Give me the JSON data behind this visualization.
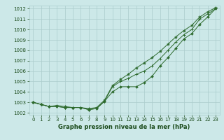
{
  "x": [
    0,
    1,
    2,
    3,
    4,
    5,
    6,
    7,
    8,
    9,
    10,
    11,
    12,
    13,
    14,
    15,
    16,
    17,
    18,
    19,
    20,
    21,
    22,
    23
  ],
  "line1": [
    1003.0,
    1002.8,
    1002.6,
    1002.6,
    1002.5,
    1002.5,
    1002.5,
    1002.3,
    1002.4,
    1003.1,
    1004.0,
    1004.5,
    1004.5,
    1004.5,
    1004.9,
    1005.5,
    1006.5,
    1007.3,
    1008.2,
    1009.1,
    1009.6,
    1010.5,
    1011.2,
    1012.0
  ],
  "line2": [
    1003.0,
    1002.8,
    1002.6,
    1002.6,
    1002.5,
    1002.5,
    1002.5,
    1002.3,
    1002.4,
    1003.1,
    1004.5,
    1005.0,
    1005.3,
    1005.7,
    1006.0,
    1006.5,
    1007.2,
    1008.0,
    1008.8,
    1009.5,
    1010.0,
    1011.0,
    1011.5,
    1012.0
  ],
  "line3": [
    1003.0,
    1002.8,
    1002.6,
    1002.7,
    1002.6,
    1002.5,
    1002.5,
    1002.4,
    1002.5,
    1003.2,
    1004.6,
    1005.2,
    1005.7,
    1006.3,
    1006.8,
    1007.3,
    1007.9,
    1008.6,
    1009.3,
    1009.9,
    1010.4,
    1011.2,
    1011.7,
    1012.1
  ],
  "ylim": [
    1001.8,
    1012.3
  ],
  "yticks": [
    1002,
    1003,
    1004,
    1005,
    1006,
    1007,
    1008,
    1009,
    1010,
    1011,
    1012
  ],
  "xticks": [
    0,
    1,
    2,
    3,
    4,
    5,
    6,
    7,
    8,
    9,
    10,
    11,
    12,
    13,
    14,
    15,
    16,
    17,
    18,
    19,
    20,
    21,
    22,
    23
  ],
  "xlabel": "Graphe pression niveau de la mer (hPa)",
  "line_color": "#2d6a2d",
  "bg_color": "#cce8e8",
  "grid_color": "#aacccc",
  "label_color": "#1a4a1a",
  "tick_fontsize": 5.0,
  "xlabel_fontsize": 6.0
}
